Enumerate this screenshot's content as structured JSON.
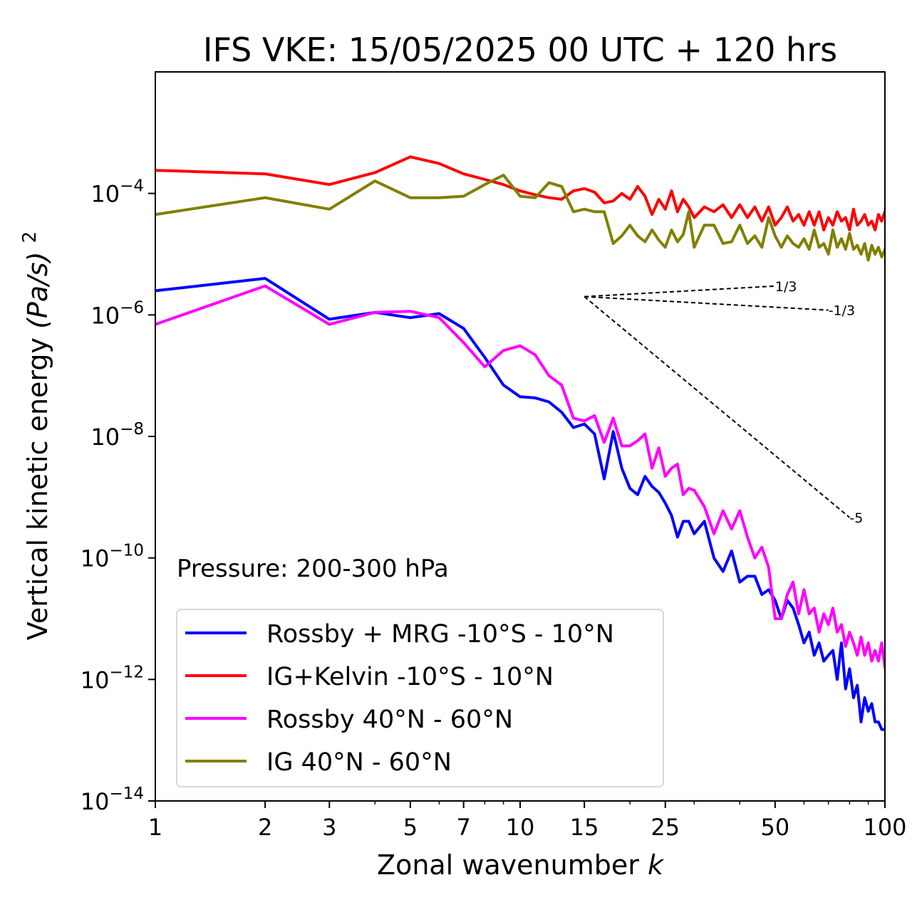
{
  "chart_data": {
    "type": "line",
    "title": "IFS VKE: 15/05/2025 00 UTC + 120 hrs",
    "xlabel": "Zonal wavenumber",
    "xlabel_italic": "k",
    "ylabel": "Vertical kinetic energy",
    "ylabel_unit": "(Pa/s)",
    "ylabel_exponent": "2",
    "xscale": "log",
    "yscale": "log",
    "xlim": [
      1,
      100
    ],
    "ylim": [
      1e-14,
      0.01
    ],
    "xticks": [
      1,
      2,
      3,
      5,
      7,
      10,
      15,
      25,
      50,
      100
    ],
    "xtick_labels": [
      "1",
      "2",
      "3",
      "5",
      "7",
      "10",
      "15",
      "25",
      "50",
      "100"
    ],
    "yticks": [
      -14,
      -12,
      -10,
      -8,
      -6,
      -4
    ],
    "ytick_base": "10",
    "ytick_exponents": [
      "−14",
      "−12",
      "−10",
      "−8",
      "−6",
      "−4"
    ],
    "annotation": "Pressure: 200-300 hPa",
    "legend_position": "lower-left",
    "series": [
      {
        "name": "Rossby + MRG -10°S - 10°N",
        "color": "#0000ff",
        "x": [
          1,
          2,
          3,
          4,
          5,
          6,
          7,
          8,
          9,
          10,
          11,
          12,
          13,
          14,
          15,
          16,
          17,
          18,
          19,
          20,
          21,
          22,
          23,
          24,
          25,
          26,
          27,
          28,
          29,
          30,
          32,
          34,
          36,
          38,
          40,
          42,
          44,
          46,
          48,
          50,
          52,
          54,
          56,
          58,
          60,
          62,
          64,
          66,
          68,
          70,
          72,
          74,
          76,
          78,
          80,
          82,
          84,
          86,
          88,
          90,
          92,
          94,
          96,
          98,
          100
        ],
        "y": [
          2.5e-06,
          4e-06,
          8.5e-07,
          1.1e-06,
          9e-07,
          1.05e-06,
          6e-07,
          2e-07,
          7e-08,
          4.5e-08,
          4.3e-08,
          3.7e-08,
          2.5e-08,
          1.4e-08,
          1.6e-08,
          1.1e-08,
          2e-09,
          1.2e-08,
          3e-09,
          1.4e-09,
          1.1e-09,
          2.2e-09,
          1.5e-09,
          1.2e-09,
          8e-10,
          5e-10,
          2.2e-10,
          4e-10,
          4e-10,
          2.5e-10,
          4e-10,
          1e-10,
          6e-11,
          1.3e-10,
          4e-11,
          5e-11,
          5e-11,
          2.5e-11,
          3e-11,
          2e-11,
          1e-11,
          2e-11,
          1.5e-11,
          8e-12,
          4e-12,
          6e-12,
          2.5e-12,
          4e-12,
          2e-12,
          2.5e-12,
          3e-12,
          1e-12,
          4e-12,
          7e-13,
          1.5e-12,
          5e-13,
          8e-13,
          2e-13,
          5e-13,
          3e-13,
          4e-13,
          2e-13,
          2e-13,
          1.5e-13,
          1.5e-13
        ]
      },
      {
        "name": "IG+Kelvin -10°S - 10°N",
        "color": "#ff0000",
        "x": [
          1,
          2,
          3,
          4,
          5,
          6,
          7,
          8,
          9,
          10,
          11,
          12,
          13,
          14,
          15,
          16,
          17,
          18,
          19,
          20,
          21,
          22,
          23,
          24,
          25,
          26,
          27,
          28,
          29,
          30,
          32,
          34,
          36,
          38,
          40,
          42,
          44,
          46,
          48,
          50,
          52,
          54,
          56,
          58,
          60,
          62,
          64,
          66,
          68,
          70,
          72,
          74,
          76,
          78,
          80,
          82,
          84,
          86,
          88,
          90,
          92,
          94,
          96,
          98,
          100
        ],
        "y": [
          0.00024,
          0.00021,
          0.00014,
          0.00022,
          0.0004,
          0.00031,
          0.00021,
          0.00017,
          0.00014,
          0.00011,
          9.5e-05,
          8.5e-05,
          8e-05,
          0.00011,
          0.00012,
          0.000105,
          7e-05,
          7.5e-05,
          0.0001,
          8e-05,
          0.00013,
          9e-05,
          4.5e-05,
          8e-05,
          5.5e-05,
          0.00011,
          5e-05,
          8e-05,
          6e-05,
          4e-05,
          6e-05,
          5e-05,
          6.5e-05,
          4e-05,
          6.5e-05,
          4e-05,
          6e-05,
          3.5e-05,
          6e-05,
          3e-05,
          4e-05,
          6e-05,
          3.5e-05,
          4.5e-05,
          3e-05,
          5e-05,
          3e-05,
          5e-05,
          2.5e-05,
          4e-05,
          3e-05,
          5e-05,
          3.5e-05,
          4e-05,
          2.5e-05,
          5.5e-05,
          3e-05,
          3.5e-05,
          4.5e-05,
          3e-05,
          3.5e-05,
          2.5e-05,
          4.5e-05,
          3.5e-05,
          5e-05
        ]
      },
      {
        "name": "Rossby 40°N - 60°N",
        "color": "#ff00ff",
        "x": [
          1,
          2,
          3,
          4,
          5,
          6,
          7,
          8,
          9,
          10,
          11,
          12,
          13,
          14,
          15,
          16,
          17,
          18,
          19,
          20,
          21,
          22,
          23,
          24,
          25,
          26,
          27,
          28,
          29,
          30,
          32,
          34,
          36,
          38,
          40,
          42,
          44,
          46,
          48,
          50,
          52,
          54,
          56,
          58,
          60,
          62,
          64,
          66,
          68,
          70,
          72,
          74,
          76,
          78,
          80,
          82,
          84,
          86,
          88,
          90,
          92,
          94,
          96,
          98,
          100
        ],
        "y": [
          7e-07,
          3e-06,
          7e-07,
          1.1e-06,
          1.15e-06,
          9e-07,
          3.5e-07,
          1.4e-07,
          2.6e-07,
          3.1e-07,
          2.2e-07,
          1e-07,
          7e-08,
          2e-08,
          1.8e-08,
          2.2e-08,
          8e-09,
          2e-08,
          7e-09,
          7e-09,
          8.5e-09,
          1.1e-08,
          3e-09,
          6.5e-09,
          2.2e-09,
          3e-09,
          3.5e-09,
          1.1e-09,
          1.4e-09,
          1.3e-09,
          7e-10,
          2.5e-10,
          6e-10,
          3e-10,
          6e-10,
          2.2e-10,
          1e-10,
          1.5e-10,
          7e-11,
          1e-11,
          1e-11,
          2.5e-11,
          4e-11,
          1.2e-11,
          3e-11,
          1.2e-11,
          1.5e-11,
          6e-12,
          1.2e-11,
          8e-12,
          1.5e-11,
          6e-12,
          8e-12,
          3.5e-12,
          6e-12,
          4e-12,
          2.5e-12,
          5e-12,
          2.5e-12,
          4e-12,
          2e-12,
          3e-12,
          2e-12,
          4e-12,
          1.6e-12
        ]
      },
      {
        "name": "IG 40°N - 60°N",
        "color": "#808000",
        "x": [
          1,
          2,
          3,
          4,
          5,
          6,
          7,
          8,
          9,
          10,
          11,
          12,
          13,
          14,
          15,
          16,
          17,
          18,
          19,
          20,
          21,
          22,
          23,
          24,
          25,
          26,
          27,
          28,
          29,
          30,
          32,
          34,
          36,
          38,
          40,
          42,
          44,
          46,
          48,
          50,
          52,
          54,
          56,
          58,
          60,
          62,
          64,
          66,
          68,
          70,
          72,
          74,
          76,
          78,
          80,
          82,
          84,
          86,
          88,
          90,
          92,
          94,
          96,
          98,
          100
        ],
        "y": [
          4.5e-05,
          8.5e-05,
          5.5e-05,
          0.00016,
          8.5e-05,
          8.5e-05,
          9e-05,
          0.00014,
          0.0002,
          9e-05,
          8.5e-05,
          0.00015,
          0.00013,
          5e-05,
          5.5e-05,
          5e-05,
          5e-05,
          1.5e-05,
          2e-05,
          3e-05,
          2e-05,
          1.6e-05,
          2.5e-05,
          1.7e-05,
          1.3e-05,
          2.5e-05,
          1.6e-05,
          2.1e-05,
          5e-05,
          1.3e-05,
          3e-05,
          3e-05,
          1.5e-05,
          1.6e-05,
          3e-05,
          1.5e-05,
          2e-05,
          1.3e-05,
          4e-05,
          2e-05,
          1.3e-05,
          2e-05,
          1.5e-05,
          1.3e-05,
          1.8e-05,
          1.2e-05,
          2.5e-05,
          1.3e-05,
          1.5e-05,
          1e-05,
          2.5e-05,
          1.3e-05,
          1.8e-05,
          1.2e-05,
          2.2e-05,
          1.2e-05,
          1.4e-05,
          1e-05,
          1.5e-05,
          8e-06,
          1.4e-05,
          1e-05,
          1.3e-05,
          9e-06,
          1.2e-05
        ]
      }
    ],
    "reference_slopes": [
      {
        "label": "1/3",
        "slope": 0.333,
        "x0": 15,
        "y0": 2e-06,
        "x1": 50
      },
      {
        "label": "-1/3",
        "slope": -0.333,
        "x0": 15,
        "y0": 2e-06,
        "x1": 70
      },
      {
        "label": "-5",
        "slope": -5,
        "x0": 15,
        "y0": 2e-06,
        "x1": 80
      }
    ]
  }
}
